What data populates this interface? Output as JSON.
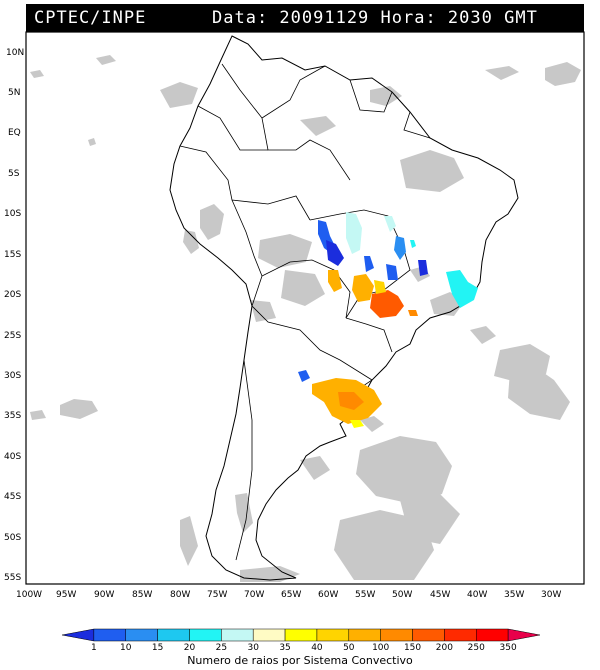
{
  "header": {
    "left_text": "CPTEC/INPE",
    "right_text": "Data: 20091129 Hora: 2030 GMT"
  },
  "lat_labels": [
    "10N",
    "5N",
    "EQ",
    "5S",
    "10S",
    "15S",
    "20S",
    "25S",
    "30S",
    "35S",
    "40S",
    "45S",
    "50S",
    "55S"
  ],
  "lon_labels": [
    "100W",
    "95W",
    "90W",
    "85W",
    "80W",
    "75W",
    "70W",
    "65W",
    "60W",
    "55W",
    "50W",
    "45W",
    "40W",
    "35W",
    "30W"
  ],
  "legend": {
    "title": "Numero de raios por Sistema Convectivo",
    "ticks": [
      "1",
      "10",
      "15",
      "20",
      "25",
      "30",
      "35",
      "40",
      "50",
      "100",
      "150",
      "200",
      "250",
      "350"
    ],
    "colors": [
      "#1b2ddd",
      "#1f5ef0",
      "#2a8ef2",
      "#1ec8f0",
      "#22f4f4",
      "#c4f8f4",
      "#fffbc4",
      "#ffff00",
      "#ffd400",
      "#ffb000",
      "#ff8a00",
      "#ff5a00",
      "#ff2a00",
      "#ff0000",
      "#e8004a"
    ]
  },
  "colors": {
    "cloud": "#c8c8c8",
    "land_outline": "#000000"
  }
}
